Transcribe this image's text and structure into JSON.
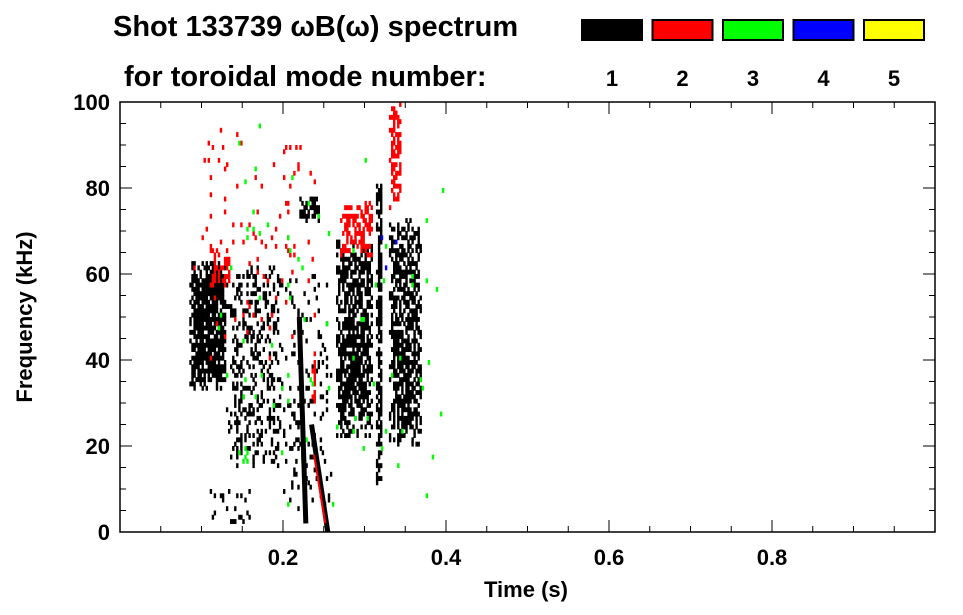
{
  "chart_data": {
    "type": "heatmap",
    "title": "Shot 133739 ωB(ω) spectrum",
    "subtitle": "for toroidal mode number:",
    "xlabel": "Time (s)",
    "ylabel": "Frequency (kHz)",
    "xlim": [
      0,
      1.0
    ],
    "ylim": [
      0,
      100
    ],
    "xticks": [
      0.2,
      0.4,
      0.6,
      0.8
    ],
    "xtick_labels": [
      "0.2",
      "0.4",
      "0.6",
      "0.8"
    ],
    "yticks": [
      0,
      20,
      40,
      60,
      80,
      100
    ],
    "ytick_labels": [
      "0",
      "20",
      "40",
      "60",
      "80",
      "100"
    ],
    "legend": [
      {
        "label": "1",
        "color": "#000000"
      },
      {
        "label": "2",
        "color": "#ff0000"
      },
      {
        "label": "3",
        "color": "#00ff00"
      },
      {
        "label": "4",
        "color": "#0000ff"
      },
      {
        "label": "5",
        "color": "#ffff00"
      }
    ],
    "legend_placement": "top-right",
    "features": [
      {
        "mode": 1,
        "t": [
          0.085,
          0.13
        ],
        "f": [
          33,
          63
        ],
        "density": 0.85
      },
      {
        "mode": 1,
        "t": [
          0.13,
          0.2
        ],
        "f": [
          15,
          62
        ],
        "density": 0.3
      },
      {
        "mode": 1,
        "t": [
          0.2,
          0.26
        ],
        "f": [
          5,
          60
        ],
        "density": 0.12
      },
      {
        "mode": 1,
        "t": [
          0.11,
          0.16
        ],
        "f": [
          1,
          10
        ],
        "density": 0.15
      },
      {
        "mode": 2,
        "t": [
          0.11,
          0.135
        ],
        "f": [
          57,
          66
        ],
        "density": 0.45
      },
      {
        "mode": 2,
        "t": [
          0.09,
          0.24
        ],
        "f": [
          40,
          95
        ],
        "density": 0.03
      },
      {
        "mode": 1,
        "t": [
          0.22,
          0.245
        ],
        "f": [
          72,
          78
        ],
        "density": 0.5
      },
      {
        "mode": 1,
        "t": [
          0.265,
          0.31
        ],
        "f": [
          22,
          68
        ],
        "density": 0.7
      },
      {
        "mode": 2,
        "t": [
          0.27,
          0.31
        ],
        "f": [
          64,
          77
        ],
        "density": 0.55
      },
      {
        "mode": 1,
        "t": [
          0.314,
          0.32
        ],
        "f": [
          10,
          82
        ],
        "density": 0.8
      },
      {
        "mode": 2,
        "t": [
          0.33,
          0.345
        ],
        "f": [
          75,
          100
        ],
        "density": 0.6
      },
      {
        "mode": 1,
        "t": [
          0.33,
          0.37
        ],
        "f": [
          20,
          73
        ],
        "density": 0.65
      },
      {
        "mode": 2,
        "t": [
          0.235,
          0.24
        ],
        "f": [
          30,
          42
        ],
        "density": 0.8
      },
      {
        "mode": 3,
        "t": [
          0.12,
          0.4
        ],
        "f": [
          5,
          95
        ],
        "density": 0.01
      },
      {
        "mode": 4,
        "t": [
          0.3,
          0.35
        ],
        "f": [
          40,
          90
        ],
        "density": 0.005
      }
    ],
    "chirps": [
      {
        "mode": 1,
        "t": [
          0.235,
          0.255
        ],
        "f": [
          25,
          0
        ]
      },
      {
        "mode": 2,
        "t": [
          0.238,
          0.252
        ],
        "f": [
          18,
          2
        ]
      },
      {
        "mode": 1,
        "t": [
          0.22,
          0.228
        ],
        "f": [
          50,
          2
        ]
      }
    ]
  }
}
